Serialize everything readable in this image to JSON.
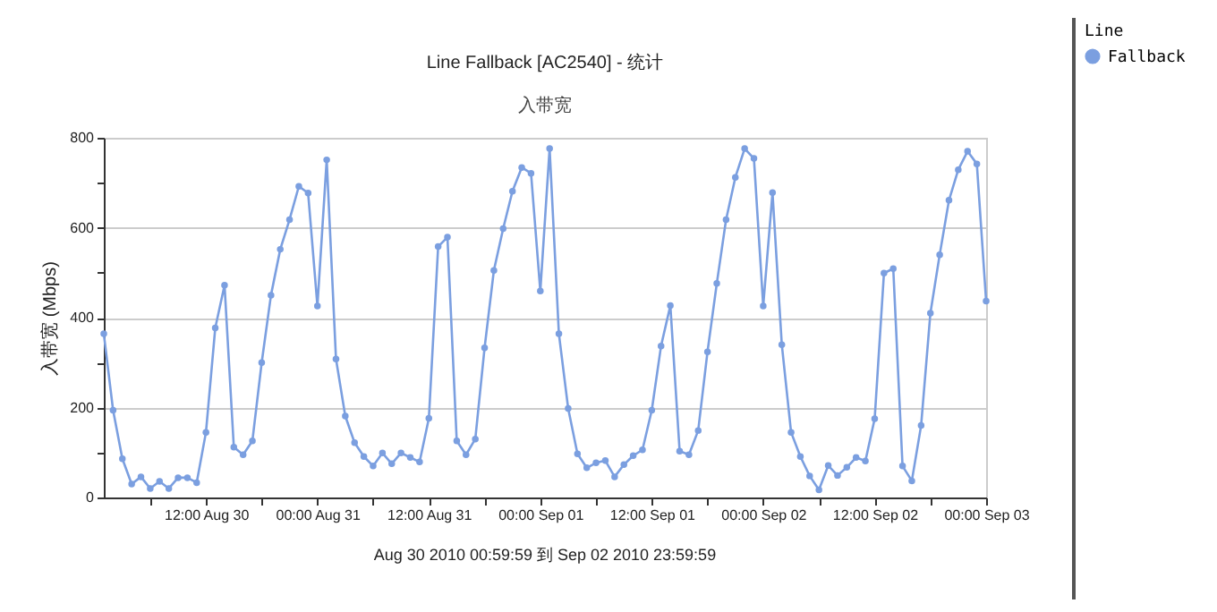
{
  "chart_data": {
    "type": "line",
    "title": "Line Fallback [AC2540] - 统计",
    "subtitle": "入带宽",
    "ylabel": "入带宽 (Mbps)",
    "legend_title": "Line",
    "annotations": [
      "Aug 30 2010  00:59:59  到  Sep 02 2010  23:59:59"
    ],
    "x": [
      "2010-08-30T01:00",
      "2010-08-30T02:00",
      "2010-08-30T03:00",
      "2010-08-30T04:00",
      "2010-08-30T05:00",
      "2010-08-30T06:00",
      "2010-08-30T07:00",
      "2010-08-30T08:00",
      "2010-08-30T09:00",
      "2010-08-30T10:00",
      "2010-08-30T11:00",
      "2010-08-30T12:00",
      "2010-08-30T13:00",
      "2010-08-30T14:00",
      "2010-08-30T15:00",
      "2010-08-30T16:00",
      "2010-08-30T17:00",
      "2010-08-30T18:00",
      "2010-08-30T19:00",
      "2010-08-30T20:00",
      "2010-08-30T21:00",
      "2010-08-30T22:00",
      "2010-08-30T23:00",
      "2010-08-31T00:00",
      "2010-08-31T01:00",
      "2010-08-31T02:00",
      "2010-08-31T03:00",
      "2010-08-31T04:00",
      "2010-08-31T05:00",
      "2010-08-31T06:00",
      "2010-08-31T07:00",
      "2010-08-31T08:00",
      "2010-08-31T09:00",
      "2010-08-31T10:00",
      "2010-08-31T11:00",
      "2010-08-31T12:00",
      "2010-08-31T13:00",
      "2010-08-31T14:00",
      "2010-08-31T15:00",
      "2010-08-31T16:00",
      "2010-08-31T17:00",
      "2010-08-31T18:00",
      "2010-08-31T19:00",
      "2010-08-31T20:00",
      "2010-08-31T21:00",
      "2010-08-31T22:00",
      "2010-08-31T23:00",
      "2010-09-01T00:00",
      "2010-09-01T01:00",
      "2010-09-01T02:00",
      "2010-09-01T03:00",
      "2010-09-01T04:00",
      "2010-09-01T05:00",
      "2010-09-01T06:00",
      "2010-09-01T07:00",
      "2010-09-01T08:00",
      "2010-09-01T09:00",
      "2010-09-01T10:00",
      "2010-09-01T11:00",
      "2010-09-01T12:00",
      "2010-09-01T13:00",
      "2010-09-01T14:00",
      "2010-09-01T15:00",
      "2010-09-01T16:00",
      "2010-09-01T17:00",
      "2010-09-01T18:00",
      "2010-09-01T19:00",
      "2010-09-01T20:00",
      "2010-09-01T21:00",
      "2010-09-01T22:00",
      "2010-09-01T23:00",
      "2010-09-02T00:00",
      "2010-09-02T01:00",
      "2010-09-02T02:00",
      "2010-09-02T03:00",
      "2010-09-02T04:00",
      "2010-09-02T05:00",
      "2010-09-02T06:00",
      "2010-09-02T07:00",
      "2010-09-02T08:00",
      "2010-09-02T09:00",
      "2010-09-02T10:00",
      "2010-09-02T11:00",
      "2010-09-02T12:00",
      "2010-09-02T13:00",
      "2010-09-02T14:00",
      "2010-09-02T15:00",
      "2010-09-02T16:00",
      "2010-09-02T17:00",
      "2010-09-02T18:00",
      "2010-09-02T19:00",
      "2010-09-02T20:00",
      "2010-09-02T21:00",
      "2010-09-02T22:00",
      "2010-09-02T23:00",
      "2010-09-03T00:00"
    ],
    "series": [
      {
        "name": "Fallback",
        "color": "#7b9fe0",
        "values": [
          364,
          194,
          86,
          30,
          46,
          20,
          36,
          20,
          44,
          44,
          33,
          145,
          377,
          472,
          112,
          95,
          126,
          300,
          450,
          552,
          618,
          692,
          677,
          426,
          751,
          308,
          181,
          122,
          91,
          70,
          99,
          75,
          99,
          89,
          79,
          176,
          558,
          579,
          126,
          95,
          130,
          333,
          505,
          598,
          681,
          734,
          721,
          459,
          776,
          364,
          198,
          97,
          66,
          77,
          82,
          46,
          73,
          93,
          106,
          194,
          337,
          427,
          103,
          95,
          149,
          324,
          476,
          618,
          712,
          776,
          754,
          426,
          678,
          340,
          145,
          91,
          48,
          17,
          71,
          49,
          67,
          89,
          81,
          175,
          499,
          509,
          70,
          37,
          160,
          410,
          540,
          661,
          729,
          770,
          742,
          437
        ]
      }
    ],
    "xlim": [
      "2010-08-30T01:00",
      "2010-09-03T00:00"
    ],
    "xticks": [
      {
        "value": "2010-08-30T06:00",
        "label": null
      },
      {
        "value": "2010-08-30T12:00",
        "label": "12:00 Aug 30"
      },
      {
        "value": "2010-08-30T18:00",
        "label": null
      },
      {
        "value": "2010-08-31T00:00",
        "label": "00:00 Aug 31"
      },
      {
        "value": "2010-08-31T06:00",
        "label": null
      },
      {
        "value": "2010-08-31T12:00",
        "label": "12:00 Aug 31"
      },
      {
        "value": "2010-08-31T18:00",
        "label": null
      },
      {
        "value": "2010-09-01T00:00",
        "label": "00:00 Sep 01"
      },
      {
        "value": "2010-09-01T06:00",
        "label": null
      },
      {
        "value": "2010-09-01T12:00",
        "label": "12:00 Sep 01"
      },
      {
        "value": "2010-09-01T18:00",
        "label": null
      },
      {
        "value": "2010-09-02T00:00",
        "label": "00:00 Sep 02"
      },
      {
        "value": "2010-09-02T06:00",
        "label": null
      },
      {
        "value": "2010-09-02T12:00",
        "label": "12:00 Sep 02"
      },
      {
        "value": "2010-09-02T18:00",
        "label": null
      },
      {
        "value": "2010-09-03T00:00",
        "label": "00:00 Sep 03"
      }
    ],
    "ylim": [
      0,
      800
    ],
    "yticks": [
      0,
      {
        "value": 100,
        "label": null
      },
      200,
      {
        "value": 300,
        "label": null
      },
      400,
      {
        "value": 500,
        "label": null
      },
      600,
      {
        "value": 700,
        "label": null
      },
      800
    ],
    "grid": "y",
    "legend": "top right",
    "marker": "circle",
    "line_style": "solid"
  }
}
